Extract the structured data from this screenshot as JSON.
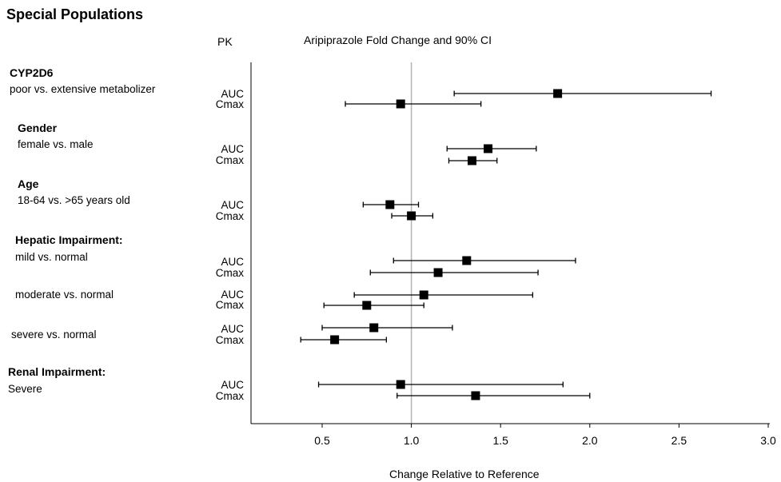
{
  "title": "Special Populations",
  "pk_header": "PK",
  "plot_title": "Aripiprazole Fold Change and 90% CI",
  "groups": [
    {
      "heading": "CYP2D6",
      "subs": [
        {
          "label": "poor vs. extensive metabolizer"
        }
      ]
    },
    {
      "heading": "Gender",
      "subs": [
        {
          "label": "female vs. male"
        }
      ]
    },
    {
      "heading": "Age",
      "subs": [
        {
          "label": "18-64 vs. >65 years old"
        }
      ]
    },
    {
      "heading": "Hepatic Impairment:",
      "subs": [
        {
          "label": "mild vs. normal"
        },
        {
          "label": "moderate vs. normal"
        },
        {
          "label": "severe vs. normal"
        }
      ]
    },
    {
      "heading": "Renal Impairment:",
      "subs": [
        {
          "label": "Severe"
        }
      ]
    }
  ],
  "chart_data": {
    "type": "forest",
    "xlabel": "Change Relative to Reference",
    "xlim": [
      0.1,
      3.0
    ],
    "xticks": [
      0.5,
      1.0,
      1.5,
      2.0,
      2.5,
      3.0
    ],
    "xtick_labels": [
      "0.5",
      "1.0",
      "1.5",
      "2.0",
      "2.5",
      "3.0"
    ],
    "reference_line": 1.0,
    "rows": [
      {
        "pk": "AUC",
        "point": 1.82,
        "low": 1.24,
        "high": 2.68
      },
      {
        "pk": "Cmax",
        "point": 0.94,
        "low": 0.63,
        "high": 1.39
      },
      {
        "pk": "AUC",
        "point": 1.43,
        "low": 1.2,
        "high": 1.7
      },
      {
        "pk": "Cmax",
        "point": 1.34,
        "low": 1.21,
        "high": 1.48
      },
      {
        "pk": "AUC",
        "point": 0.88,
        "low": 0.73,
        "high": 1.04
      },
      {
        "pk": "Cmax",
        "point": 1.0,
        "low": 0.89,
        "high": 1.12
      },
      {
        "pk": "AUC",
        "point": 1.31,
        "low": 0.9,
        "high": 1.92
      },
      {
        "pk": "Cmax",
        "point": 1.15,
        "low": 0.77,
        "high": 1.71
      },
      {
        "pk": "AUC",
        "point": 1.07,
        "low": 0.68,
        "high": 1.68
      },
      {
        "pk": "Cmax",
        "point": 0.75,
        "low": 0.51,
        "high": 1.07
      },
      {
        "pk": "AUC",
        "point": 0.79,
        "low": 0.5,
        "high": 1.23
      },
      {
        "pk": "Cmax",
        "point": 0.57,
        "low": 0.38,
        "high": 0.86
      },
      {
        "pk": "AUC",
        "point": 0.94,
        "low": 0.48,
        "high": 1.85
      },
      {
        "pk": "Cmax",
        "point": 1.36,
        "low": 0.92,
        "high": 2.0
      }
    ],
    "colors": {
      "marker": "#000000",
      "reference_line": "#b3b3b3",
      "axis": "#000000"
    }
  }
}
